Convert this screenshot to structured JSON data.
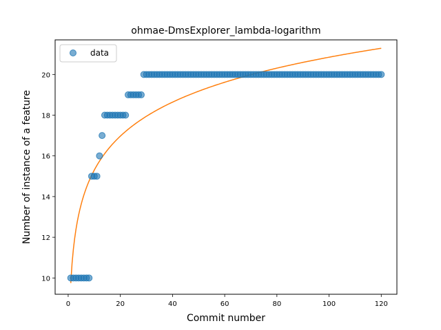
{
  "chart_data": {
    "type": "scatter",
    "title": "ohmae-DmsExplorer_lambda-logarithm",
    "xlabel": "Commit number",
    "ylabel": "Number of instance of a feature",
    "xlim": [
      -5,
      126
    ],
    "ylim": [
      9.2,
      21.7
    ],
    "xticks": [
      0,
      20,
      40,
      60,
      80,
      100,
      120
    ],
    "yticks": [
      10,
      12,
      14,
      16,
      18,
      20
    ],
    "grid": false,
    "legend": {
      "location": "top-left",
      "entries": [
        "data"
      ]
    },
    "colors": {
      "data": "#1f77b4",
      "fit": "#ff7f0e"
    },
    "series": [
      {
        "name": "data",
        "style": "markers",
        "x": [
          1,
          2,
          3,
          4,
          5,
          6,
          7,
          8,
          9,
          10,
          11,
          12,
          13,
          14,
          15,
          16,
          17,
          18,
          19,
          20,
          21,
          22,
          23,
          24,
          25,
          26,
          27,
          28,
          29,
          30,
          31,
          32,
          33,
          34,
          35,
          36,
          37,
          38,
          39,
          40,
          41,
          42,
          43,
          44,
          45,
          46,
          47,
          48,
          49,
          50,
          51,
          52,
          53,
          54,
          55,
          56,
          57,
          58,
          59,
          60,
          61,
          62,
          63,
          64,
          65,
          66,
          67,
          68,
          69,
          70,
          71,
          72,
          73,
          74,
          75,
          76,
          77,
          78,
          79,
          80,
          81,
          82,
          83,
          84,
          85,
          86,
          87,
          88,
          89,
          90,
          91,
          92,
          93,
          94,
          95,
          96,
          97,
          98,
          99,
          100,
          101,
          102,
          103,
          104,
          105,
          106,
          107,
          108,
          109,
          110,
          111,
          112,
          113,
          114,
          115,
          116,
          117,
          118,
          119,
          120
        ],
        "y": [
          10,
          10,
          10,
          10,
          10,
          10,
          10,
          10,
          15,
          15,
          15,
          16,
          17,
          18,
          18,
          18,
          18,
          18,
          18,
          18,
          18,
          18,
          19,
          19,
          19,
          19,
          19,
          19,
          20,
          20,
          20,
          20,
          20,
          20,
          20,
          20,
          20,
          20,
          20,
          20,
          20,
          20,
          20,
          20,
          20,
          20,
          20,
          20,
          20,
          20,
          20,
          20,
          20,
          20,
          20,
          20,
          20,
          20,
          20,
          20,
          20,
          20,
          20,
          20,
          20,
          20,
          20,
          20,
          20,
          20,
          20,
          20,
          20,
          20,
          20,
          20,
          20,
          20,
          20,
          20,
          20,
          20,
          20,
          20,
          20,
          20,
          20,
          20,
          20,
          20,
          20,
          20,
          20,
          20,
          20,
          20,
          20,
          20,
          20,
          20,
          20,
          20,
          20,
          20,
          20,
          20,
          20,
          20,
          20,
          20,
          20,
          20,
          20,
          20,
          20,
          20,
          20,
          20,
          20,
          20
        ]
      },
      {
        "style": "line",
        "model": "logarithm",
        "a": 9.75,
        "b": 2.41,
        "x_range": [
          1,
          120
        ]
      }
    ]
  }
}
